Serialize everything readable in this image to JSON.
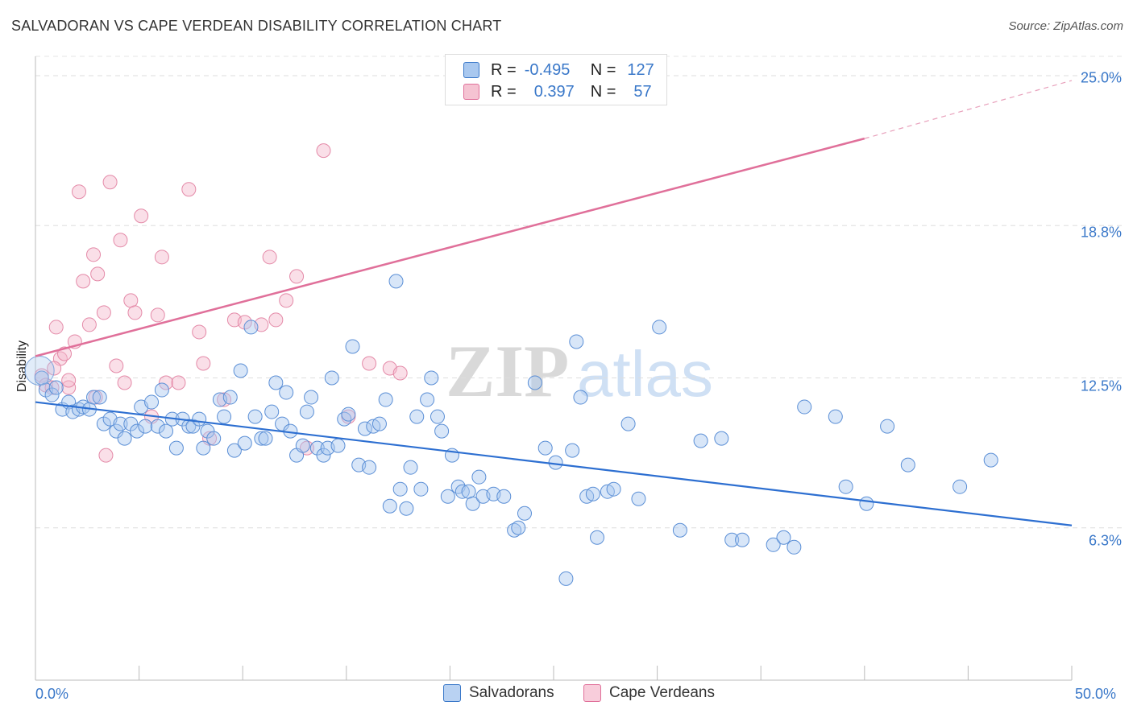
{
  "title": "SALVADORAN VS CAPE VERDEAN DISABILITY CORRELATION CHART",
  "source": "Source: ZipAtlas.com",
  "watermark": {
    "zip": "ZIP",
    "atlas": "atlas"
  },
  "colors": {
    "blue": "#3a78c9",
    "pink": "#e0709a",
    "blue_fill": "#a9c8ef",
    "pink_fill": "#f5b8cb",
    "grid": "#dddddd"
  },
  "legend": {
    "rows": [
      {
        "r_label": "R =",
        "r_value": "-0.495",
        "n_label": "N =",
        "n_value": "127"
      },
      {
        "r_label": "R =",
        "r_value": "0.397",
        "n_label": "N =",
        "n_value": "57"
      }
    ]
  },
  "chart_data": {
    "type": "scatter",
    "xlabel": "",
    "ylabel": "Disability",
    "xlim": [
      0,
      50
    ],
    "ylim": [
      0,
      25.8
    ],
    "x_tick_labels": [
      "0.0%",
      "50.0%"
    ],
    "y_ticks": [
      6.3,
      12.5,
      18.8,
      25.0
    ],
    "y_tick_labels": [
      "6.3%",
      "12.5%",
      "18.8%",
      "25.0%"
    ],
    "grid": true,
    "legend_placement": "top-center",
    "series": [
      {
        "name": "Salvadorans",
        "color": "#3a78c9",
        "trend": {
          "x0": 0,
          "y0": 11.5,
          "x1": 50,
          "y1": 6.4
        },
        "points": [
          [
            0.3,
            12.5
          ],
          [
            0.5,
            12.0
          ],
          [
            0.8,
            11.8
          ],
          [
            1.0,
            12.1
          ],
          [
            1.3,
            11.2
          ],
          [
            1.6,
            11.5
          ],
          [
            1.8,
            11.1
          ],
          [
            2.1,
            11.2
          ],
          [
            2.3,
            11.3
          ],
          [
            2.6,
            11.2
          ],
          [
            2.8,
            11.7
          ],
          [
            3.1,
            11.7
          ],
          [
            3.3,
            10.6
          ],
          [
            3.6,
            10.8
          ],
          [
            3.9,
            10.3
          ],
          [
            4.1,
            10.6
          ],
          [
            4.3,
            10.0
          ],
          [
            4.6,
            10.6
          ],
          [
            4.9,
            10.3
          ],
          [
            5.1,
            11.3
          ],
          [
            5.3,
            10.5
          ],
          [
            5.6,
            11.5
          ],
          [
            5.9,
            10.5
          ],
          [
            6.1,
            12.0
          ],
          [
            6.3,
            10.3
          ],
          [
            6.6,
            10.8
          ],
          [
            6.8,
            9.6
          ],
          [
            7.1,
            10.8
          ],
          [
            7.4,
            10.5
          ],
          [
            7.6,
            10.5
          ],
          [
            7.9,
            10.8
          ],
          [
            8.1,
            9.6
          ],
          [
            8.3,
            10.3
          ],
          [
            8.6,
            10.0
          ],
          [
            8.9,
            11.6
          ],
          [
            9.1,
            10.9
          ],
          [
            9.4,
            11.7
          ],
          [
            9.6,
            9.5
          ],
          [
            9.9,
            12.8
          ],
          [
            10.1,
            9.8
          ],
          [
            10.4,
            14.6
          ],
          [
            10.6,
            10.9
          ],
          [
            10.9,
            10.0
          ],
          [
            11.1,
            10.0
          ],
          [
            11.4,
            11.1
          ],
          [
            11.6,
            12.3
          ],
          [
            11.9,
            10.6
          ],
          [
            12.1,
            11.9
          ],
          [
            12.3,
            10.3
          ],
          [
            12.6,
            9.3
          ],
          [
            12.9,
            9.7
          ],
          [
            13.1,
            11.1
          ],
          [
            13.3,
            11.7
          ],
          [
            13.6,
            9.6
          ],
          [
            13.9,
            9.3
          ],
          [
            14.1,
            9.6
          ],
          [
            14.3,
            12.5
          ],
          [
            14.6,
            9.7
          ],
          [
            14.9,
            10.8
          ],
          [
            15.1,
            11.0
          ],
          [
            15.3,
            13.8
          ],
          [
            15.6,
            8.9
          ],
          [
            15.9,
            10.4
          ],
          [
            16.1,
            8.8
          ],
          [
            16.3,
            10.5
          ],
          [
            16.6,
            10.6
          ],
          [
            16.9,
            11.6
          ],
          [
            17.1,
            7.2
          ],
          [
            17.4,
            16.5
          ],
          [
            17.6,
            7.9
          ],
          [
            17.9,
            7.1
          ],
          [
            18.1,
            8.8
          ],
          [
            18.4,
            10.9
          ],
          [
            18.6,
            7.9
          ],
          [
            18.9,
            11.6
          ],
          [
            19.1,
            12.5
          ],
          [
            19.4,
            10.9
          ],
          [
            19.6,
            10.3
          ],
          [
            19.9,
            7.6
          ],
          [
            20.1,
            9.3
          ],
          [
            20.4,
            8.0
          ],
          [
            20.6,
            7.8
          ],
          [
            20.9,
            7.8
          ],
          [
            21.1,
            7.3
          ],
          [
            21.4,
            8.4
          ],
          [
            21.6,
            7.6
          ],
          [
            22.1,
            7.7
          ],
          [
            22.6,
            7.6
          ],
          [
            23.1,
            6.2
          ],
          [
            23.3,
            6.3
          ],
          [
            23.6,
            6.9
          ],
          [
            24.1,
            12.3
          ],
          [
            24.6,
            9.6
          ],
          [
            25.1,
            9.0
          ],
          [
            25.6,
            4.2
          ],
          [
            25.9,
            9.5
          ],
          [
            26.1,
            14.0
          ],
          [
            26.3,
            11.7
          ],
          [
            26.6,
            7.6
          ],
          [
            26.9,
            7.7
          ],
          [
            27.1,
            5.9
          ],
          [
            27.6,
            7.8
          ],
          [
            27.9,
            7.9
          ],
          [
            28.6,
            10.6
          ],
          [
            29.1,
            7.5
          ],
          [
            30.1,
            14.6
          ],
          [
            31.1,
            6.2
          ],
          [
            32.1,
            9.9
          ],
          [
            33.1,
            10.0
          ],
          [
            33.6,
            5.8
          ],
          [
            34.1,
            5.8
          ],
          [
            35.6,
            5.6
          ],
          [
            36.1,
            5.9
          ],
          [
            36.6,
            5.5
          ],
          [
            37.1,
            11.3
          ],
          [
            38.6,
            10.9
          ],
          [
            39.1,
            8.0
          ],
          [
            40.1,
            7.3
          ],
          [
            41.1,
            10.5
          ],
          [
            42.1,
            8.9
          ],
          [
            44.6,
            8.0
          ],
          [
            46.1,
            9.1
          ]
        ]
      },
      {
        "name": "Cape Verdeans",
        "color": "#e0709a",
        "trend": {
          "x0": 0,
          "y0": 13.4,
          "x1": 40,
          "y1": 22.4,
          "dashed_to_x": 50,
          "dashed_to_y": 24.8
        },
        "points": [
          [
            0.3,
            12.6
          ],
          [
            0.5,
            12.2
          ],
          [
            0.8,
            12.1
          ],
          [
            1.0,
            14.6
          ],
          [
            1.2,
            13.3
          ],
          [
            1.4,
            13.5
          ],
          [
            1.6,
            12.1
          ],
          [
            1.9,
            14.0
          ],
          [
            2.1,
            20.2
          ],
          [
            2.3,
            16.5
          ],
          [
            2.6,
            14.7
          ],
          [
            2.8,
            17.6
          ],
          [
            3.0,
            16.8
          ],
          [
            3.3,
            15.2
          ],
          [
            3.6,
            20.6
          ],
          [
            3.9,
            13.0
          ],
          [
            4.1,
            18.2
          ],
          [
            4.3,
            12.3
          ],
          [
            4.6,
            15.7
          ],
          [
            4.8,
            15.2
          ],
          [
            5.1,
            19.2
          ],
          [
            5.6,
            10.9
          ],
          [
            5.9,
            15.1
          ],
          [
            6.1,
            17.5
          ],
          [
            6.3,
            12.3
          ],
          [
            6.9,
            12.3
          ],
          [
            7.4,
            20.3
          ],
          [
            7.9,
            14.4
          ],
          [
            8.1,
            13.1
          ],
          [
            8.4,
            10.0
          ],
          [
            9.1,
            11.6
          ],
          [
            9.6,
            14.9
          ],
          [
            10.1,
            14.8
          ],
          [
            10.9,
            14.7
          ],
          [
            11.3,
            17.5
          ],
          [
            11.6,
            14.9
          ],
          [
            12.1,
            15.7
          ],
          [
            12.6,
            16.7
          ],
          [
            13.1,
            9.6
          ],
          [
            13.9,
            21.9
          ],
          [
            15.1,
            10.9
          ],
          [
            16.1,
            13.1
          ],
          [
            17.1,
            12.9
          ],
          [
            17.6,
            12.7
          ],
          [
            30.1,
            24.8
          ],
          [
            0.9,
            12.9
          ],
          [
            1.6,
            12.4
          ],
          [
            2.9,
            11.7
          ],
          [
            3.4,
            9.3
          ]
        ]
      }
    ]
  },
  "bottom_legend": [
    {
      "label": "Salvadorans"
    },
    {
      "label": "Cape Verdeans"
    }
  ]
}
